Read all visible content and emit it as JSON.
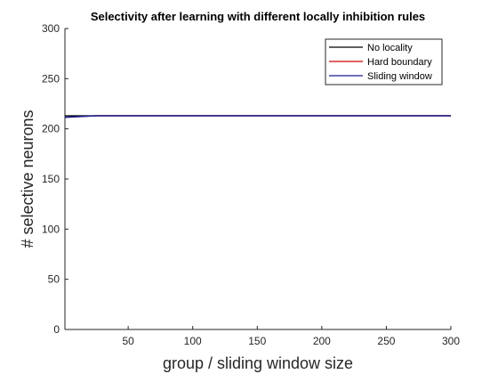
{
  "chart_data": {
    "type": "line",
    "title": "Selectivity after learning with different locally inhibition rules",
    "xlabel": "group / sliding window size",
    "ylabel": "# selective neurons",
    "xlim": [
      1,
      300
    ],
    "ylim": [
      0,
      300
    ],
    "xticks": [
      50,
      100,
      150,
      200,
      250,
      300
    ],
    "yticks": [
      0,
      50,
      100,
      150,
      200,
      250,
      300
    ],
    "grid": false,
    "legend_position": "top-right",
    "series": [
      {
        "name": "No locality",
        "color": "#000000",
        "x": [
          1,
          300
        ],
        "y": [
          213,
          213
        ]
      },
      {
        "name": "Hard boundary",
        "color": "#cc0000",
        "x": [
          1,
          25,
          300
        ],
        "y": [
          211.5,
          213,
          213
        ]
      },
      {
        "name": "Sliding window",
        "color": "#1a1a8c",
        "x": [
          1,
          25,
          300
        ],
        "y": [
          211.5,
          213,
          213
        ]
      }
    ]
  }
}
